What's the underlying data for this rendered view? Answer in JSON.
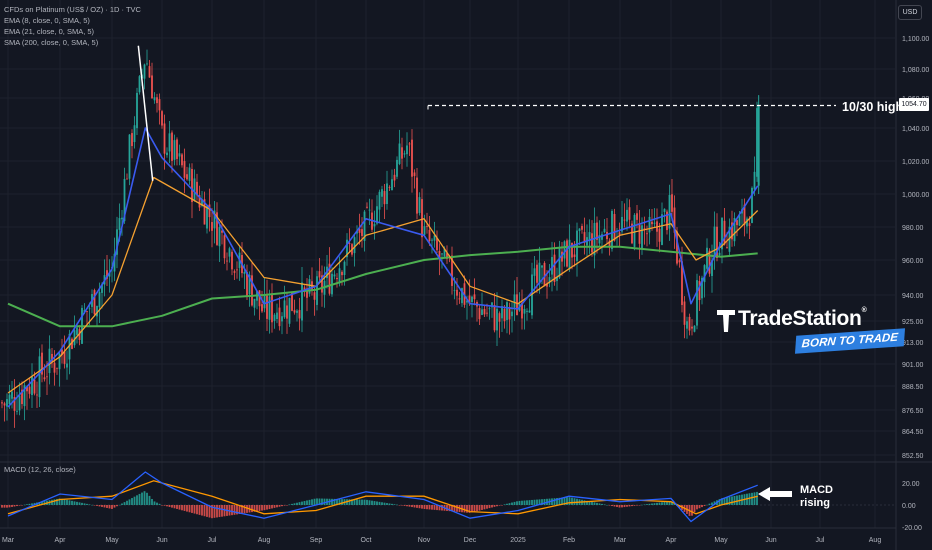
{
  "symbol": {
    "title": "CFDs on Platinum (US$ / OZ) · 1D · TVC",
    "indicators": [
      "EMA (8, close, 0, SMA, 5)",
      "EMA (21, close, 0, SMA, 5)",
      "SMA (200, close, 0, SMA, 5)"
    ],
    "currency": "USD"
  },
  "macd_label": "MACD (12, 26, close)",
  "annotations": {
    "resistance_label": "10/30 high",
    "macd_note": "MACD\nrising"
  },
  "branding": {
    "name": "TradeStation",
    "registered": "®",
    "tagline": "BORN TO TRADE"
  },
  "colors": {
    "background": "#131722",
    "up_candle": "#26a69a",
    "down_candle": "#ef5350",
    "ema8": "#3a5bf0",
    "ema21": "#f5a130",
    "sma200": "#4caf50",
    "trendline": "#ffffff",
    "macd_line": "#2962ff",
    "signal_line": "#ff9800",
    "brand_blue": "#2d7fe0"
  },
  "chart_data": {
    "type": "candlestick",
    "title": "CFDs on Platinum (US$ / OZ) · 1D · TVC",
    "last_price": 1054.7,
    "y_axis_ticks": [
      1100.0,
      1080.0,
      1060.0,
      1040.0,
      1020.0,
      1000.0,
      980.0,
      960.0,
      940.0,
      925.0,
      913.0,
      901.0,
      888.5,
      876.5,
      864.5,
      852.5
    ],
    "x_axis_labels": [
      "Mar",
      "Apr",
      "May",
      "Jun",
      "Jul",
      "Aug",
      "Sep",
      "Oct",
      "Nov",
      "Dec",
      "2025",
      "Feb",
      "Mar",
      "Apr",
      "May",
      "Jun",
      "Jul",
      "Aug"
    ],
    "close_path": [
      [
        "Mar",
        880
      ],
      [
        "Apr",
        905
      ],
      [
        "May",
        955
      ],
      [
        "May-20",
        1090
      ],
      [
        "Jun",
        1035
      ],
      [
        "Jul",
        985
      ],
      [
        "Aug",
        930
      ],
      [
        "Sep",
        940
      ],
      [
        "Oct",
        980
      ],
      [
        "Oct-25",
        1030
      ],
      [
        "Nov",
        975
      ],
      [
        "Nov-20",
        945
      ],
      [
        "Dec",
        935
      ],
      [
        "Dec-20",
        925
      ],
      [
        "2025",
        935
      ],
      [
        "Feb",
        965
      ],
      [
        "Mar",
        982
      ],
      [
        "Mar-20",
        975
      ],
      [
        "Apr",
        990
      ],
      [
        "Apr-10",
        920
      ],
      [
        "Apr-25",
        968
      ],
      [
        "May",
        975
      ],
      [
        "May-15",
        985
      ],
      [
        "May-20",
        1000
      ],
      [
        "May-22",
        1054.7
      ]
    ],
    "ema8_path": [
      [
        "Mar",
        878
      ],
      [
        "Apr",
        908
      ],
      [
        "May",
        955
      ],
      [
        "May-20",
        1040
      ],
      [
        "Jun",
        1022
      ],
      [
        "Jul",
        990
      ],
      [
        "Aug",
        935
      ],
      [
        "Sep",
        945
      ],
      [
        "Oct",
        985
      ],
      [
        "Nov",
        975
      ],
      [
        "Dec",
        935
      ],
      [
        "2025",
        932
      ],
      [
        "Feb",
        968
      ],
      [
        "Mar",
        978
      ],
      [
        "Apr",
        988
      ],
      [
        "Apr-12",
        935
      ],
      [
        "May",
        970
      ],
      [
        "May-22",
        1005
      ]
    ],
    "ema21_path": [
      [
        "Mar",
        885
      ],
      [
        "Apr",
        905
      ],
      [
        "May",
        940
      ],
      [
        "May-25",
        1010
      ],
      [
        "Jul",
        990
      ],
      [
        "Aug",
        950
      ],
      [
        "Sep",
        945
      ],
      [
        "Oct",
        975
      ],
      [
        "Nov",
        985
      ],
      [
        "Dec",
        945
      ],
      [
        "2025",
        935
      ],
      [
        "Feb",
        955
      ],
      [
        "Mar",
        975
      ],
      [
        "Apr",
        982
      ],
      [
        "Apr-15",
        960
      ],
      [
        "May",
        968
      ],
      [
        "May-22",
        990
      ]
    ],
    "sma200_path": [
      [
        "Mar",
        935
      ],
      [
        "Apr",
        922
      ],
      [
        "May",
        922
      ],
      [
        "Jun",
        928
      ],
      [
        "Jul",
        938
      ],
      [
        "Aug",
        940
      ],
      [
        "Sep",
        943
      ],
      [
        "Oct",
        952
      ],
      [
        "Nov",
        960
      ],
      [
        "Dec",
        963
      ],
      [
        "2025",
        965
      ],
      [
        "Feb",
        968
      ],
      [
        "Mar",
        968
      ],
      [
        "Apr",
        965
      ],
      [
        "May",
        962
      ],
      [
        "May-22",
        964
      ]
    ],
    "trendline": {
      "from": [
        "May-20",
        1095
      ],
      "to": [
        "May-22",
        1008
      ]
    },
    "horizontal_level": {
      "label": "10/30 high",
      "value": 1055
    },
    "macd": {
      "label": "MACD (12, 26, close)",
      "y_axis_ticks": [
        20.0,
        0.0,
        -20.0
      ],
      "macd_path": [
        [
          "Mar",
          -10
        ],
        [
          "Apr",
          10
        ],
        [
          "May",
          5
        ],
        [
          "May-20",
          30
        ],
        [
          "Jun",
          20
        ],
        [
          "Jul",
          -2
        ],
        [
          "Aug",
          -12
        ],
        [
          "Sep",
          0
        ],
        [
          "Oct",
          12
        ],
        [
          "Nov",
          5
        ],
        [
          "Dec",
          -12
        ],
        [
          "2025",
          -5
        ],
        [
          "Feb",
          8
        ],
        [
          "Mar",
          3
        ],
        [
          "Apr",
          6
        ],
        [
          "Apr-12",
          -15
        ],
        [
          "May",
          5
        ],
        [
          "May-22",
          18
        ]
      ],
      "signal_path": [
        [
          "Mar",
          -8
        ],
        [
          "Apr",
          5
        ],
        [
          "May",
          8
        ],
        [
          "May-25",
          22
        ],
        [
          "Jul",
          8
        ],
        [
          "Aug",
          -8
        ],
        [
          "Sep",
          -5
        ],
        [
          "Oct",
          8
        ],
        [
          "Nov",
          8
        ],
        [
          "Dec",
          -6
        ],
        [
          "2025",
          -8
        ],
        [
          "Feb",
          2
        ],
        [
          "Mar",
          5
        ],
        [
          "Apr",
          3
        ],
        [
          "Apr-15",
          -8
        ],
        [
          "May",
          0
        ],
        [
          "May-22",
          8
        ]
      ]
    }
  }
}
